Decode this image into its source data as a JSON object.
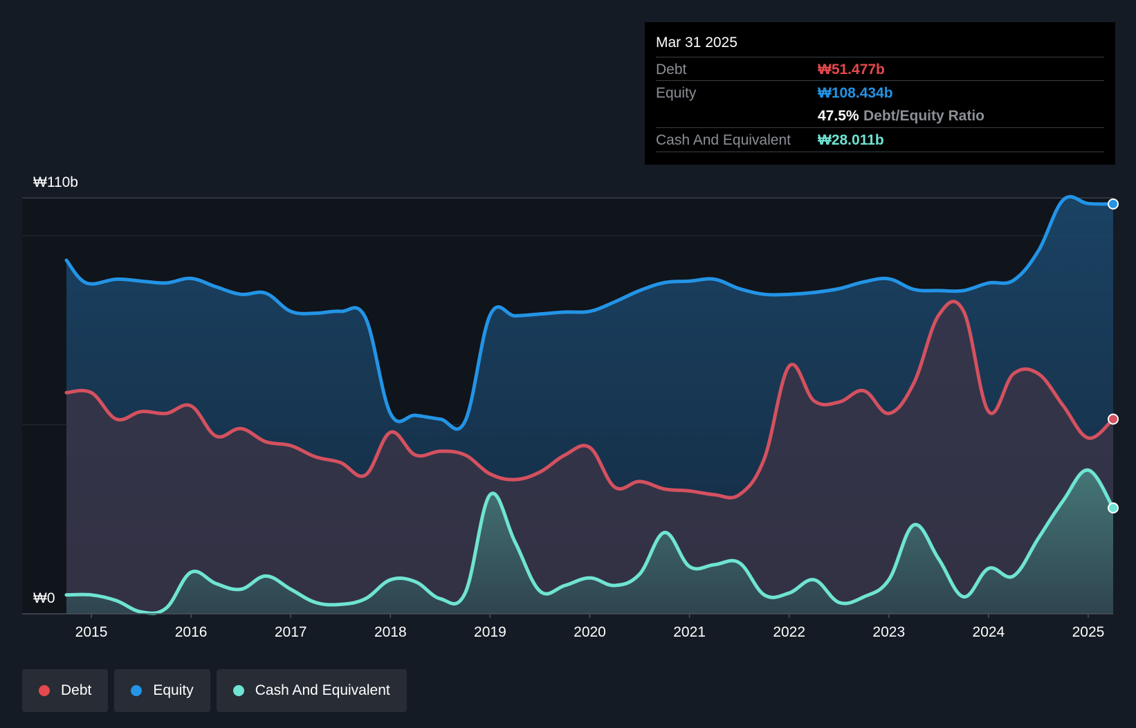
{
  "tooltip": {
    "date": "Mar 31 2025",
    "debt_label": "Debt",
    "debt_value": "₩51.477b",
    "equity_label": "Equity",
    "equity_value": "₩108.434b",
    "ratio_value": "47.5%",
    "ratio_label": "Debt/Equity Ratio",
    "cash_label": "Cash And Equivalent",
    "cash_value": "₩28.011b"
  },
  "legend": [
    {
      "label": "Debt",
      "color": "#e5484d"
    },
    {
      "label": "Equity",
      "color": "#2394e6"
    },
    {
      "label": "Cash And Equivalent",
      "color": "#6fe4d2"
    }
  ],
  "colors": {
    "debt": "#d4515f",
    "equity": "#2394e6",
    "cash": "#6fe4d2",
    "debt_text": "#e5484d",
    "equity_text": "#2394e6",
    "cash_text": "#6fe4d2"
  },
  "chart_data": {
    "type": "area",
    "title": "",
    "y_top_label": "₩110b",
    "y_bottom_label": "₩0",
    "ylim": [
      0,
      110
    ],
    "xlim": [
      2014.75,
      2025.25
    ],
    "x_ticks": [
      {
        "value": 2015,
        "label": "2015"
      },
      {
        "value": 2016,
        "label": "2016"
      },
      {
        "value": 2017,
        "label": "2017"
      },
      {
        "value": 2018,
        "label": "2018"
      },
      {
        "value": 2019,
        "label": "2019"
      },
      {
        "value": 2020,
        "label": "2020"
      },
      {
        "value": 2021,
        "label": "2021"
      },
      {
        "value": 2022,
        "label": "2022"
      },
      {
        "value": 2023,
        "label": "2023"
      },
      {
        "value": 2024,
        "label": "2024"
      },
      {
        "value": 2025,
        "label": "2025"
      }
    ],
    "gridlines": [
      50,
      100,
      110
    ],
    "series": [
      {
        "name": "Equity",
        "key": "equity",
        "x": [
          2014.75,
          2014.95,
          2015.25,
          2015.5,
          2015.75,
          2016.0,
          2016.25,
          2016.5,
          2016.75,
          2017.0,
          2017.25,
          2017.5,
          2017.75,
          2018.0,
          2018.25,
          2018.5,
          2018.75,
          2019.0,
          2019.25,
          2019.5,
          2019.75,
          2020.0,
          2020.25,
          2020.5,
          2020.75,
          2021.0,
          2021.25,
          2021.5,
          2021.75,
          2022.0,
          2022.25,
          2022.5,
          2022.75,
          2023.0,
          2023.25,
          2023.5,
          2023.75,
          2024.0,
          2024.25,
          2024.5,
          2024.75,
          2025.0,
          2025.25
        ],
        "values": [
          93.5,
          87.5,
          88.5,
          88.0,
          87.5,
          88.7,
          86.5,
          84.5,
          84.8,
          80.0,
          79.5,
          80.0,
          78.3,
          53.0,
          52.5,
          51.5,
          51.0,
          79.0,
          78.8,
          79.3,
          79.8,
          80.0,
          82.5,
          85.5,
          87.6,
          88.0,
          88.5,
          86.0,
          84.5,
          84.5,
          85.0,
          86.0,
          87.8,
          88.6,
          85.8,
          85.5,
          85.5,
          87.5,
          88.2,
          96.0,
          109.5,
          108.5,
          108.4
        ]
      },
      {
        "name": "Debt",
        "key": "debt",
        "x": [
          2014.75,
          2015.0,
          2015.25,
          2015.5,
          2015.75,
          2016.0,
          2016.25,
          2016.5,
          2016.75,
          2017.0,
          2017.25,
          2017.5,
          2017.75,
          2018.0,
          2018.25,
          2018.5,
          2018.75,
          2019.0,
          2019.25,
          2019.5,
          2019.75,
          2020.0,
          2020.25,
          2020.5,
          2020.75,
          2021.0,
          2021.25,
          2021.5,
          2021.75,
          2022.0,
          2022.25,
          2022.5,
          2022.75,
          2023.0,
          2023.25,
          2023.5,
          2023.75,
          2024.0,
          2024.25,
          2024.5,
          2024.75,
          2025.0,
          2025.25
        ],
        "values": [
          58.5,
          58.5,
          51.5,
          53.5,
          53.0,
          55.0,
          47.0,
          49.0,
          45.5,
          44.5,
          41.5,
          40.0,
          36.7,
          48.0,
          42.0,
          43.0,
          42.0,
          37.0,
          35.5,
          37.5,
          42.0,
          44.0,
          33.5,
          35.0,
          33.0,
          32.5,
          31.5,
          31.5,
          41.0,
          65.5,
          56.3,
          56.0,
          59.0,
          53.0,
          61.0,
          79.0,
          80.0,
          53.5,
          63.5,
          63.5,
          55.0,
          46.5,
          51.5
        ]
      },
      {
        "name": "Cash And Equivalent",
        "key": "cash",
        "x": [
          2014.75,
          2015.0,
          2015.25,
          2015.5,
          2015.75,
          2016.0,
          2016.25,
          2016.5,
          2016.75,
          2017.0,
          2017.25,
          2017.5,
          2017.75,
          2018.0,
          2018.25,
          2018.5,
          2018.75,
          2019.0,
          2019.25,
          2019.5,
          2019.75,
          2020.0,
          2020.25,
          2020.5,
          2020.75,
          2021.0,
          2021.25,
          2021.5,
          2021.75,
          2022.0,
          2022.25,
          2022.5,
          2022.75,
          2023.0,
          2023.25,
          2023.5,
          2023.75,
          2024.0,
          2024.25,
          2024.5,
          2024.75,
          2025.0,
          2025.25
        ],
        "values": [
          5.0,
          5.0,
          3.5,
          0.5,
          1.5,
          11.0,
          8.0,
          6.5,
          10.0,
          6.5,
          3.0,
          2.5,
          4.0,
          9.0,
          8.5,
          4.0,
          5.5,
          31.5,
          19.0,
          6.0,
          7.5,
          9.5,
          7.5,
          10.5,
          21.5,
          12.5,
          13.0,
          13.5,
          5.0,
          5.5,
          9.0,
          3.0,
          4.5,
          9.0,
          23.5,
          14.5,
          4.5,
          12.0,
          10.0,
          20.0,
          30.0,
          38.0,
          28.0
        ]
      }
    ],
    "legend_position": "bottom-left"
  }
}
